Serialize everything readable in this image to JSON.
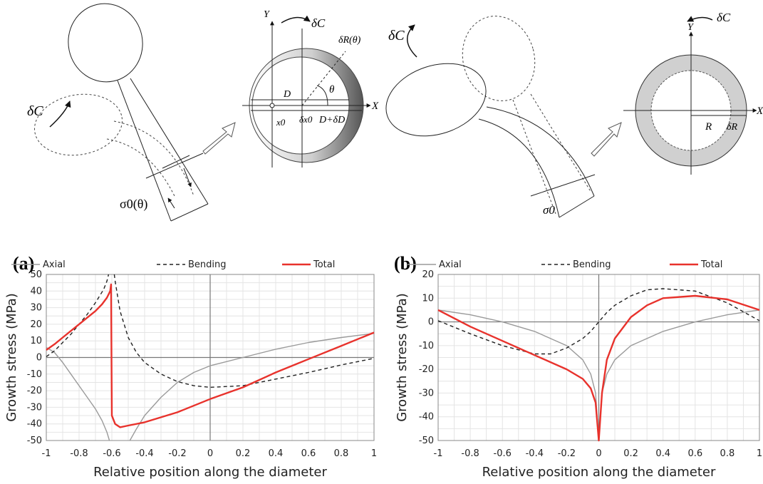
{
  "diagrams": {
    "left": {
      "rotation_label": "δC",
      "stress_label": "σ0(θ)",
      "section": {
        "y_axis": "Y",
        "x_axis": "X",
        "rotation_label": "δC",
        "delta_r_label": "δR(θ)",
        "d_label": "D",
        "theta_label": "θ",
        "d_plus_label": "D+δD",
        "x0_label": "x0",
        "dx0_label": "δx0"
      }
    },
    "right": {
      "rotation_label": "δC",
      "stress_label": "σ0",
      "section": {
        "y_axis": "Y",
        "x_axis": "X",
        "rotation_label": "δC",
        "r_label": "R",
        "delta_r_label": "δR"
      }
    }
  },
  "chart_data": [
    {
      "panel": "(a)",
      "type": "line",
      "xlabel": "Relative position along the diameter",
      "ylabel": "Growth stress (MPa)",
      "xlim": [
        -1,
        1
      ],
      "ylim": [
        -50,
        50
      ],
      "xticks": [
        "-1",
        "-0.8",
        "-0.6",
        "-0.4",
        "-0.2",
        "0",
        "0.2",
        "0.4",
        "0.6",
        "0.8",
        "1"
      ],
      "yticks": [
        "-50",
        "-40",
        "-30",
        "-20",
        "-10",
        "0",
        "10",
        "20",
        "30",
        "40",
        "50"
      ],
      "grid": true,
      "legend": "top",
      "series": [
        {
          "name": "Axial",
          "color": "#9a9a9a",
          "dash": "solid",
          "segments": [
            [
              [
                -1,
                6
              ],
              [
                -0.95,
                3
              ],
              [
                -0.9,
                -3
              ],
              [
                -0.85,
                -10
              ],
              [
                -0.8,
                -17
              ],
              [
                -0.75,
                -24
              ],
              [
                -0.7,
                -31
              ],
              [
                -0.66,
                -38
              ],
              [
                -0.63,
                -45
              ],
              [
                -0.615,
                -50
              ]
            ],
            [
              [
                -0.49,
                -50
              ],
              [
                -0.45,
                -43
              ],
              [
                -0.4,
                -35
              ],
              [
                -0.3,
                -24
              ],
              [
                -0.2,
                -15
              ],
              [
                -0.1,
                -9
              ],
              [
                0,
                -5
              ],
              [
                0.2,
                0
              ],
              [
                0.4,
                5
              ],
              [
                0.6,
                9
              ],
              [
                0.8,
                12
              ],
              [
                1,
                14.5
              ]
            ]
          ]
        },
        {
          "name": "Bending",
          "color": "#222222",
          "dash": "dashed",
          "segments": [
            [
              [
                -1,
                0.5
              ],
              [
                -0.95,
                4
              ],
              [
                -0.9,
                9
              ],
              [
                -0.85,
                14
              ],
              [
                -0.8,
                20
              ],
              [
                -0.75,
                26
              ],
              [
                -0.7,
                33
              ],
              [
                -0.65,
                41
              ],
              [
                -0.63,
                46
              ],
              [
                -0.62,
                50
              ]
            ],
            [
              [
                -0.585,
                50
              ],
              [
                -0.58,
                46
              ],
              [
                -0.55,
                28
              ],
              [
                -0.5,
                12
              ],
              [
                -0.45,
                3
              ],
              [
                -0.4,
                -3
              ],
              [
                -0.3,
                -10
              ],
              [
                -0.2,
                -14.5
              ],
              [
                -0.1,
                -17
              ],
              [
                0,
                -18
              ],
              [
                0.2,
                -17
              ],
              [
                0.4,
                -13
              ],
              [
                0.6,
                -9
              ],
              [
                0.8,
                -4.5
              ],
              [
                1,
                -0.5
              ]
            ]
          ]
        },
        {
          "name": "Total",
          "color": "#e8322c",
          "dash": "solid",
          "segments": [
            [
              [
                -1,
                4.5
              ],
              [
                -0.95,
                8
              ],
              [
                -0.9,
                12
              ],
              [
                -0.85,
                16
              ],
              [
                -0.8,
                20
              ],
              [
                -0.75,
                24
              ],
              [
                -0.7,
                28
              ],
              [
                -0.66,
                32
              ],
              [
                -0.63,
                36
              ],
              [
                -0.61,
                40
              ],
              [
                -0.605,
                44
              ],
              [
                -0.6,
                -35
              ],
              [
                -0.58,
                -40
              ],
              [
                -0.55,
                -42
              ],
              [
                -0.5,
                -41
              ],
              [
                -0.4,
                -39
              ],
              [
                -0.2,
                -33
              ],
              [
                0,
                -25
              ],
              [
                0.2,
                -18
              ],
              [
                0.4,
                -9
              ],
              [
                0.6,
                -1
              ],
              [
                0.8,
                7
              ],
              [
                1,
                15
              ]
            ]
          ]
        }
      ]
    },
    {
      "panel": "(b)",
      "type": "line",
      "xlabel": "Relative position along the diameter",
      "ylabel": "Growth stress (MPa)",
      "xlim": [
        -1,
        1
      ],
      "ylim": [
        -50,
        20
      ],
      "xticks": [
        "-1",
        "-0.8",
        "-0.6",
        "-0.4",
        "-0.2",
        "0",
        "0.2",
        "0.4",
        "0.6",
        "0.8",
        "1"
      ],
      "yticks": [
        "-50",
        "-40",
        "-30",
        "-20",
        "-10",
        "0",
        "10",
        "20"
      ],
      "grid": true,
      "legend": "top",
      "series": [
        {
          "name": "Axial",
          "color": "#9a9a9a",
          "dash": "solid",
          "segments": [
            [
              [
                -1,
                5
              ],
              [
                -0.8,
                3
              ],
              [
                -0.6,
                0
              ],
              [
                -0.4,
                -4
              ],
              [
                -0.2,
                -10
              ],
              [
                -0.1,
                -16
              ],
              [
                -0.05,
                -22
              ],
              [
                -0.02,
                -30
              ],
              [
                0,
                -50
              ],
              [
                0.02,
                -30
              ],
              [
                0.05,
                -22
              ],
              [
                0.1,
                -16
              ],
              [
                0.2,
                -10
              ],
              [
                0.4,
                -4
              ],
              [
                0.6,
                0
              ],
              [
                0.8,
                3
              ],
              [
                1,
                5
              ]
            ]
          ]
        },
        {
          "name": "Bending",
          "color": "#222222",
          "dash": "dashed",
          "segments": [
            [
              [
                -1,
                0.5
              ],
              [
                -0.8,
                -5
              ],
              [
                -0.6,
                -10
              ],
              [
                -0.4,
                -13.5
              ],
              [
                -0.3,
                -13.5
              ],
              [
                -0.2,
                -11
              ],
              [
                -0.1,
                -7
              ],
              [
                -0.05,
                -4
              ],
              [
                0,
                0
              ],
              [
                0.05,
                4
              ],
              [
                0.1,
                7
              ],
              [
                0.2,
                11
              ],
              [
                0.3,
                13.5
              ],
              [
                0.4,
                14
              ],
              [
                0.6,
                13
              ],
              [
                0.8,
                8
              ],
              [
                1,
                0.5
              ]
            ]
          ]
        },
        {
          "name": "Total",
          "color": "#e8322c",
          "dash": "solid",
          "segments": [
            [
              [
                -1,
                5
              ],
              [
                -0.8,
                -2
              ],
              [
                -0.6,
                -8
              ],
              [
                -0.4,
                -14
              ],
              [
                -0.2,
                -20
              ],
              [
                -0.1,
                -24
              ],
              [
                -0.05,
                -28
              ],
              [
                -0.02,
                -34
              ],
              [
                0,
                -50
              ],
              [
                0.02,
                -30
              ],
              [
                0.05,
                -16
              ],
              [
                0.1,
                -7
              ],
              [
                0.2,
                2
              ],
              [
                0.3,
                7
              ],
              [
                0.4,
                10
              ],
              [
                0.6,
                11
              ],
              [
                0.8,
                9.5
              ],
              [
                1,
                5
              ]
            ]
          ]
        }
      ]
    }
  ]
}
